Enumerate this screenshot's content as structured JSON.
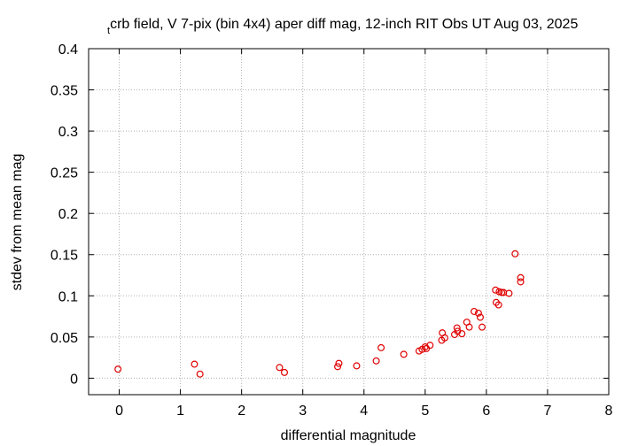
{
  "chart_data": {
    "type": "scatter",
    "title_subscript": "t",
    "title": "crb field, V 7-pix (bin 4x4) aper diff mag,  12-inch RIT Obs UT Aug 03, 2025",
    "xlabel": "differential magnitude",
    "ylabel": "stdev from mean mag",
    "xlim": [
      -0.5,
      8
    ],
    "ylim": [
      -0.02,
      0.4
    ],
    "x_ticks": [
      0,
      1,
      2,
      3,
      4,
      5,
      6,
      7,
      8
    ],
    "x_tick_labels": [
      "0",
      "1",
      "2",
      "3",
      "4",
      "5",
      "6",
      "7",
      "8"
    ],
    "y_ticks": [
      0,
      0.05,
      0.1,
      0.15,
      0.2,
      0.25,
      0.3,
      0.35,
      0.4
    ],
    "y_tick_labels": [
      "0",
      "0.05",
      "0.1",
      "0.15",
      "0.2",
      "0.25",
      "0.3",
      "0.35",
      "0.4"
    ],
    "grid": true,
    "marker": "open-circle",
    "marker_color": "#e00000",
    "points": [
      {
        "x": -0.02,
        "y": 0.011
      },
      {
        "x": 1.23,
        "y": 0.017
      },
      {
        "x": 1.32,
        "y": 0.005
      },
      {
        "x": 2.62,
        "y": 0.013
      },
      {
        "x": 2.7,
        "y": 0.007
      },
      {
        "x": 3.57,
        "y": 0.014
      },
      {
        "x": 3.59,
        "y": 0.018
      },
      {
        "x": 3.88,
        "y": 0.015
      },
      {
        "x": 4.2,
        "y": 0.021
      },
      {
        "x": 4.28,
        "y": 0.037
      },
      {
        "x": 4.65,
        "y": 0.029
      },
      {
        "x": 4.9,
        "y": 0.033
      },
      {
        "x": 4.95,
        "y": 0.035
      },
      {
        "x": 5.0,
        "y": 0.038
      },
      {
        "x": 5.02,
        "y": 0.036
      },
      {
        "x": 5.08,
        "y": 0.04
      },
      {
        "x": 5.27,
        "y": 0.046
      },
      {
        "x": 5.28,
        "y": 0.055
      },
      {
        "x": 5.32,
        "y": 0.049
      },
      {
        "x": 5.48,
        "y": 0.053
      },
      {
        "x": 5.52,
        "y": 0.061
      },
      {
        "x": 5.53,
        "y": 0.057
      },
      {
        "x": 5.6,
        "y": 0.054
      },
      {
        "x": 5.68,
        "y": 0.068
      },
      {
        "x": 5.72,
        "y": 0.062
      },
      {
        "x": 5.8,
        "y": 0.081
      },
      {
        "x": 5.87,
        "y": 0.079
      },
      {
        "x": 5.9,
        "y": 0.074
      },
      {
        "x": 5.93,
        "y": 0.062
      },
      {
        "x": 6.15,
        "y": 0.107
      },
      {
        "x": 6.16,
        "y": 0.092
      },
      {
        "x": 6.2,
        "y": 0.089
      },
      {
        "x": 6.21,
        "y": 0.105
      },
      {
        "x": 6.25,
        "y": 0.104
      },
      {
        "x": 6.28,
        "y": 0.104
      },
      {
        "x": 6.37,
        "y": 0.103
      },
      {
        "x": 6.47,
        "y": 0.151
      },
      {
        "x": 6.56,
        "y": 0.122
      },
      {
        "x": 6.56,
        "y": 0.117
      }
    ]
  }
}
